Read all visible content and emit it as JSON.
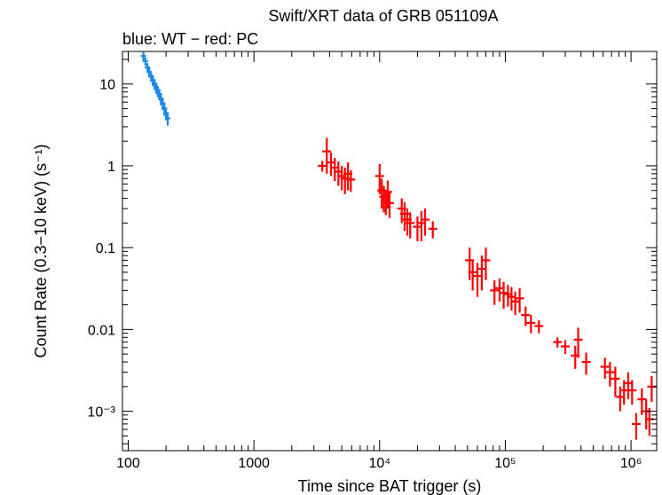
{
  "chart_data": {
    "type": "scatter",
    "title": "Swift/XRT data of GRB 051109A",
    "subtitle": "blue: WT − red: PC",
    "xlabel": "Time since BAT trigger (s)",
    "ylabel": "Count Rate (0.3−10 keV) (s⁻¹)",
    "xscale": "log",
    "yscale": "log",
    "xlim": [
      90,
      1600000
    ],
    "ylim": [
      0.00033,
      25
    ],
    "x_ticks": [
      {
        "value": 100,
        "label": "100"
      },
      {
        "value": 1000,
        "label": "1000"
      },
      {
        "value": 10000,
        "label": "10⁴"
      },
      {
        "value": 100000,
        "label": "10⁵"
      },
      {
        "value": 1000000,
        "label": "10⁶"
      }
    ],
    "y_ticks": [
      {
        "value": 10,
        "label": "10"
      },
      {
        "value": 1,
        "label": "1"
      },
      {
        "value": 0.1,
        "label": "0.1"
      },
      {
        "value": 0.01,
        "label": "0.01"
      },
      {
        "value": 0.001,
        "label": "10⁻³"
      }
    ],
    "series": [
      {
        "name": "WT",
        "color": "#1e88e5",
        "points": [
          [
            132,
            22,
            2.5
          ],
          [
            137,
            19,
            2.2
          ],
          [
            142,
            16,
            2.0
          ],
          [
            147,
            14,
            2.0
          ],
          [
            152,
            12.5,
            1.8
          ],
          [
            157,
            11,
            1.6
          ],
          [
            162,
            10,
            1.5
          ],
          [
            167,
            9,
            1.4
          ],
          [
            172,
            8.2,
            1.3
          ],
          [
            177,
            7.5,
            1.2
          ],
          [
            182,
            6.6,
            1.1
          ],
          [
            188,
            5.8,
            1.0
          ],
          [
            194,
            5.0,
            0.9
          ],
          [
            200,
            4.4,
            0.8
          ],
          [
            206,
            3.8,
            0.7
          ]
        ]
      },
      {
        "name": "PC",
        "color": "#ff0000",
        "points": [
          [
            3500,
            1.0,
            0.15
          ],
          [
            3800,
            1.5,
            0.7
          ],
          [
            4100,
            1.1,
            0.35
          ],
          [
            4400,
            0.95,
            0.3
          ],
          [
            4700,
            0.85,
            0.28
          ],
          [
            5000,
            0.75,
            0.25
          ],
          [
            5300,
            0.7,
            0.25
          ],
          [
            5600,
            0.8,
            0.3
          ],
          [
            5900,
            0.68,
            0.2
          ],
          [
            10000,
            0.75,
            0.3
          ],
          [
            10400,
            0.5,
            0.2
          ],
          [
            10800,
            0.42,
            0.15
          ],
          [
            11200,
            0.38,
            0.13
          ],
          [
            11600,
            0.48,
            0.18
          ],
          [
            12000,
            0.35,
            0.12
          ],
          [
            15000,
            0.3,
            0.1
          ],
          [
            15800,
            0.26,
            0.1
          ],
          [
            16600,
            0.22,
            0.08
          ],
          [
            17500,
            0.2,
            0.07
          ],
          [
            20000,
            0.18,
            0.06
          ],
          [
            21500,
            0.2,
            0.08
          ],
          [
            23000,
            0.22,
            0.08
          ],
          [
            26500,
            0.17,
            0.04
          ],
          [
            52000,
            0.07,
            0.03
          ],
          [
            55000,
            0.05,
            0.02
          ],
          [
            60000,
            0.045,
            0.02
          ],
          [
            65000,
            0.055,
            0.025
          ],
          [
            70000,
            0.07,
            0.03
          ],
          [
            82000,
            0.03,
            0.01
          ],
          [
            90000,
            0.032,
            0.01
          ],
          [
            97000,
            0.028,
            0.01
          ],
          [
            105000,
            0.027,
            0.008
          ],
          [
            112000,
            0.025,
            0.008
          ],
          [
            120000,
            0.022,
            0.007
          ],
          [
            130000,
            0.024,
            0.008
          ],
          [
            145000,
            0.015,
            0.004
          ],
          [
            160000,
            0.012,
            0.003
          ],
          [
            185000,
            0.011,
            0.002
          ],
          [
            260000,
            0.007,
            0.001
          ],
          [
            300000,
            0.0062,
            0.0012
          ],
          [
            360000,
            0.0048,
            0.0015
          ],
          [
            380000,
            0.0075,
            0.003
          ],
          [
            440000,
            0.004,
            0.0012
          ],
          [
            620000,
            0.0035,
            0.001
          ],
          [
            680000,
            0.003,
            0.001
          ],
          [
            750000,
            0.0025,
            0.001
          ],
          [
            820000,
            0.0015,
            0.0005
          ],
          [
            880000,
            0.0018,
            0.0006
          ],
          [
            950000,
            0.0022,
            0.0008
          ],
          [
            1020000,
            0.0018,
            0.0006
          ],
          [
            1100000,
            0.0007,
            0.00025
          ],
          [
            1220000,
            0.0014,
            0.0005
          ],
          [
            1320000,
            0.001,
            0.0004
          ],
          [
            1400000,
            0.0008,
            0.0003
          ],
          [
            1460000,
            0.002,
            0.0007
          ]
        ]
      }
    ]
  }
}
